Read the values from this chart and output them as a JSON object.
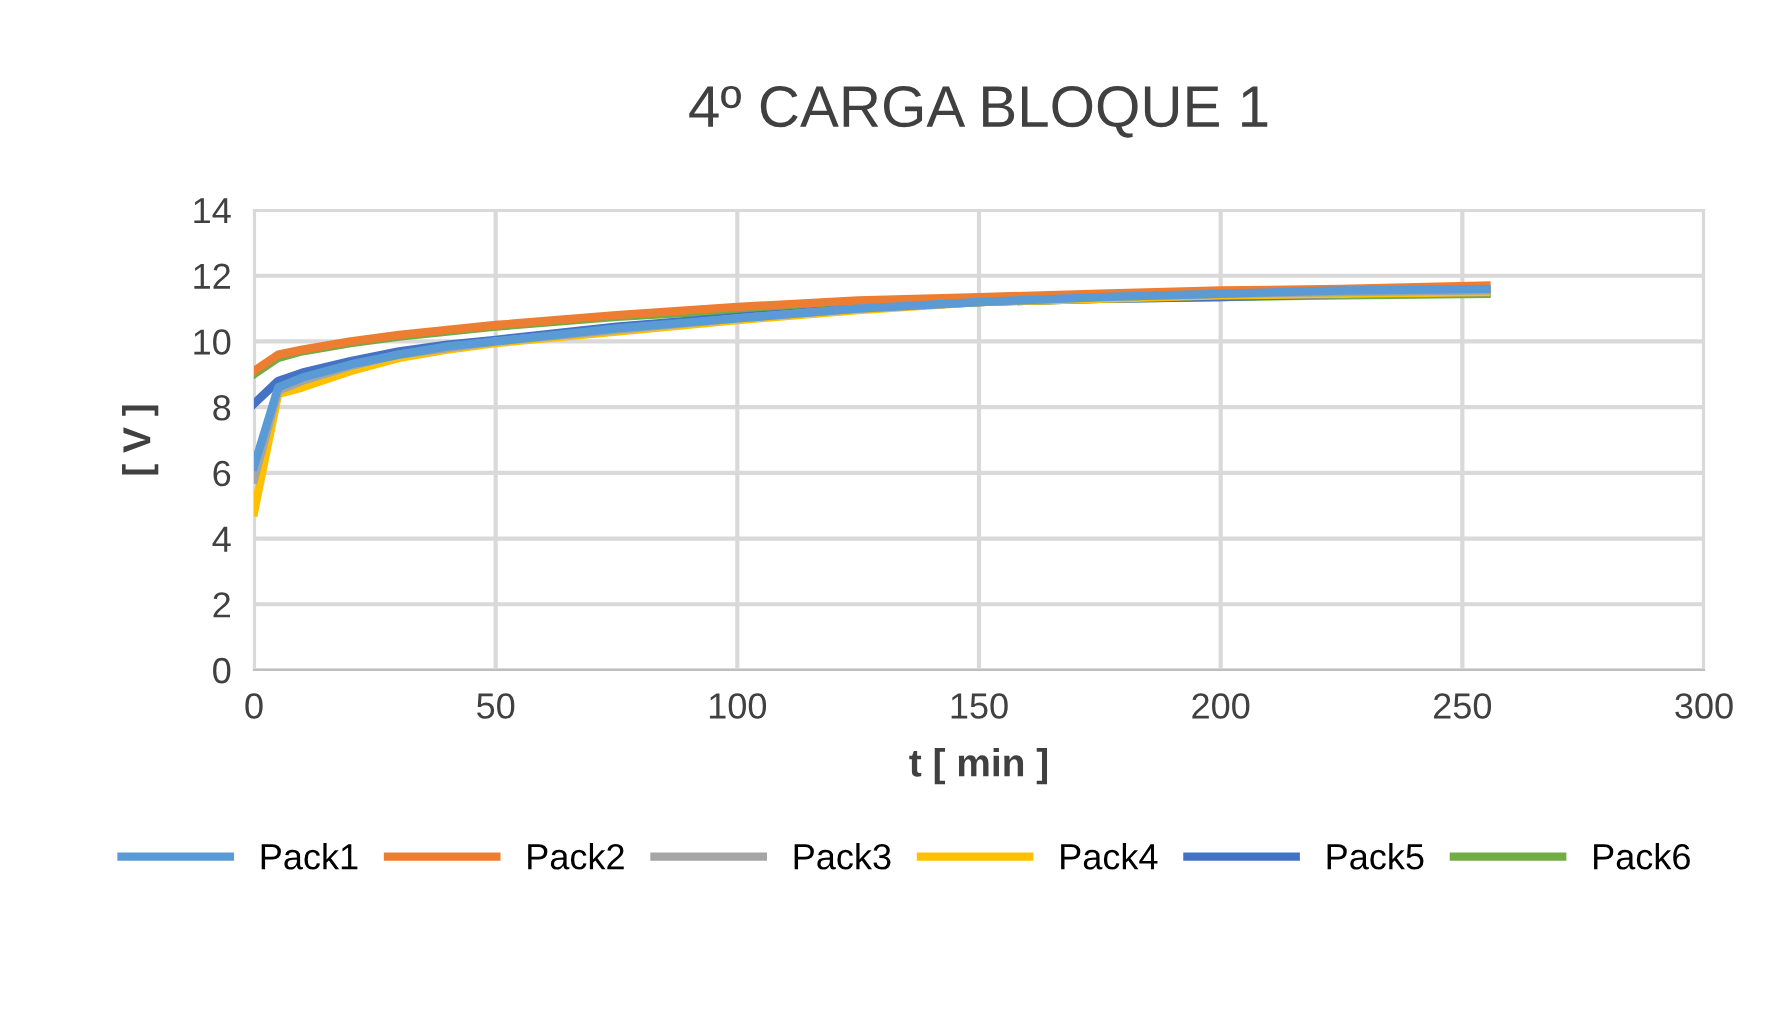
{
  "chart_data": {
    "type": "line",
    "title": "4º CARGA BLOQUE 1",
    "xlabel": "t [ min ]",
    "ylabel": "[ V ]",
    "x": [
      0,
      5,
      10,
      20,
      30,
      40,
      50,
      75,
      100,
      125,
      150,
      175,
      200,
      225,
      255
    ],
    "series": [
      {
        "name": "Pack1",
        "color": "#5b9bd5",
        "values": [
          6.2,
          8.6,
          8.9,
          9.3,
          9.6,
          9.85,
          10.0,
          10.4,
          10.7,
          11.0,
          11.2,
          11.35,
          11.45,
          11.55,
          11.6
        ]
      },
      {
        "name": "Pack2",
        "color": "#ed7d31",
        "values": [
          9.1,
          9.6,
          9.75,
          10.0,
          10.2,
          10.35,
          10.5,
          10.8,
          11.05,
          11.25,
          11.35,
          11.45,
          11.55,
          11.6,
          11.7
        ]
      },
      {
        "name": "Pack3",
        "color": "#a5a5a5",
        "values": [
          5.8,
          8.5,
          8.8,
          9.25,
          9.6,
          9.8,
          10.0,
          10.35,
          10.7,
          11.0,
          11.2,
          11.35,
          11.45,
          11.5,
          11.55
        ]
      },
      {
        "name": "Pack4",
        "color": "#ffc000",
        "values": [
          4.8,
          8.4,
          8.6,
          9.1,
          9.5,
          9.75,
          9.95,
          10.3,
          10.65,
          10.95,
          11.2,
          11.3,
          11.4,
          11.45,
          11.5
        ]
      },
      {
        "name": "Pack5",
        "color": "#4472c4",
        "values": [
          8.1,
          8.8,
          9.05,
          9.4,
          9.7,
          9.9,
          10.05,
          10.45,
          10.75,
          11.0,
          11.2,
          11.3,
          11.35,
          11.45,
          11.5
        ]
      },
      {
        "name": "Pack6",
        "color": "#70ad47",
        "values": [
          9.0,
          9.5,
          9.7,
          9.95,
          10.15,
          10.3,
          10.45,
          10.75,
          10.95,
          11.1,
          11.2,
          11.3,
          11.35,
          11.4,
          11.45
        ]
      }
    ],
    "xlim": [
      0,
      300
    ],
    "xticks": [
      0,
      50,
      100,
      150,
      200,
      250,
      300
    ],
    "ylim": [
      0,
      14
    ],
    "yticks": [
      0,
      2,
      4,
      6,
      8,
      10,
      12,
      14
    ],
    "grid": true,
    "legend": "bottom",
    "marker": "none",
    "line_style": "solid"
  }
}
